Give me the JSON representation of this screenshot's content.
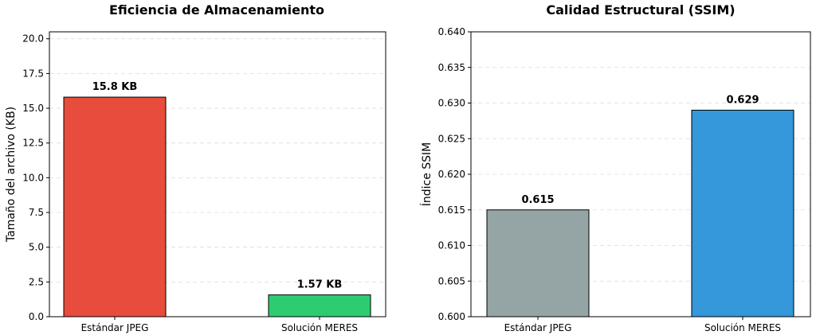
{
  "chart_data": [
    {
      "type": "bar",
      "title": "Eficiencia de Almacenamiento",
      "xlabel": "",
      "ylabel": "Tamaño del archivo (KB)",
      "categories": [
        "Estándar JPEG",
        "Solución MERES"
      ],
      "values": [
        15.8,
        1.57
      ],
      "data_labels": [
        "15.8 KB",
        "1.57 KB"
      ],
      "colors": [
        "#e74c3c",
        "#2ecc71"
      ],
      "ylim": [
        0,
        20.5
      ],
      "yticks": [
        0.0,
        2.5,
        5.0,
        7.5,
        10.0,
        12.5,
        15.0,
        17.5,
        20.0
      ],
      "ytick_labels": [
        "0.0",
        "2.5",
        "5.0",
        "7.5",
        "10.0",
        "12.5",
        "15.0",
        "17.5",
        "20.0"
      ],
      "grid": "horizontal dashed"
    },
    {
      "type": "bar",
      "title": "Calidad Estructural (SSIM)",
      "xlabel": "",
      "ylabel": "Índice SSIM",
      "categories": [
        "Estándar JPEG",
        "Solución MERES"
      ],
      "values": [
        0.615,
        0.629
      ],
      "data_labels": [
        "0.615",
        "0.629"
      ],
      "colors": [
        "#95a5a6",
        "#3498db"
      ],
      "ylim": [
        0.6,
        0.64
      ],
      "yticks": [
        0.6,
        0.605,
        0.61,
        0.615,
        0.62,
        0.625,
        0.63,
        0.635,
        0.64
      ],
      "ytick_labels": [
        "0.600",
        "0.605",
        "0.610",
        "0.615",
        "0.620",
        "0.625",
        "0.630",
        "0.635",
        "0.640"
      ],
      "grid": "horizontal dashed"
    }
  ]
}
